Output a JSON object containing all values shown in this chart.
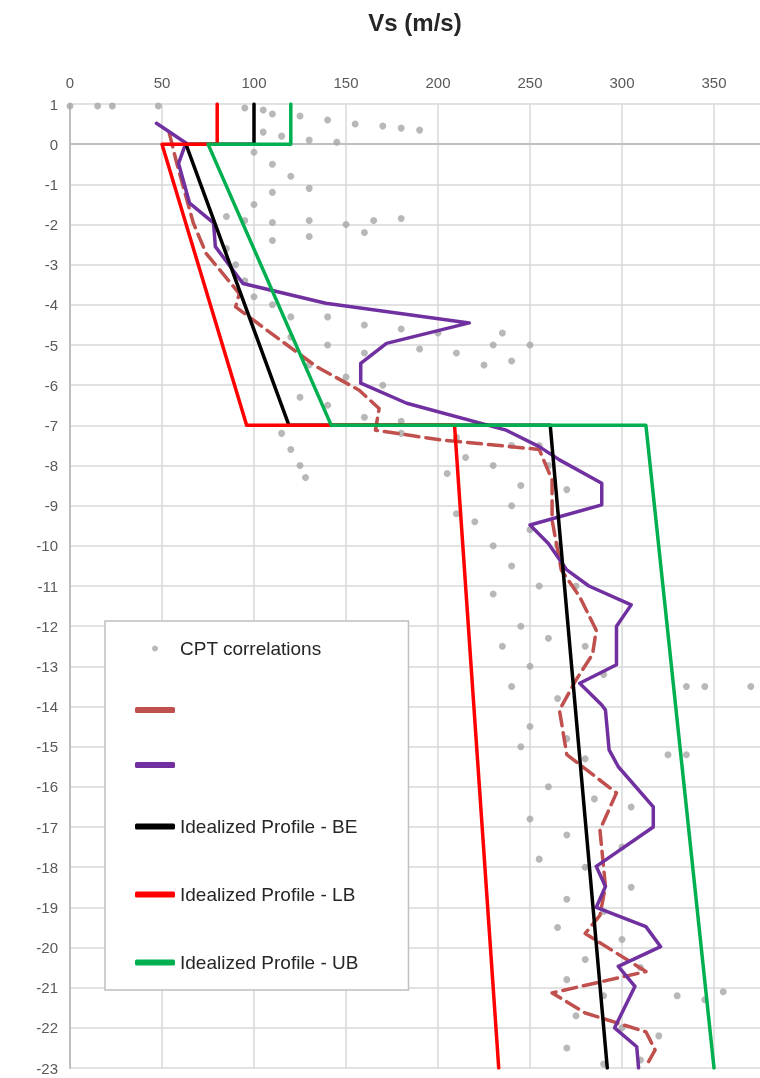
{
  "chart_data": {
    "type": "line",
    "xlabel": "Vs (m/s)",
    "xlim": [
      0,
      375
    ],
    "xticks": [
      0,
      50,
      100,
      150,
      200,
      250,
      300,
      350
    ],
    "ylim": [
      -23,
      1
    ],
    "yticks": [
      -23,
      -22,
      -21,
      -20,
      -19,
      -18,
      -17,
      -16,
      -15,
      -14,
      -13,
      -12,
      -11,
      -10,
      -9,
      -8,
      -7,
      -6,
      -5,
      -4,
      -3,
      -2,
      -1,
      0,
      1
    ],
    "grid": true,
    "legend": "bottom left",
    "marker": "none",
    "series": [
      {
        "name": "CPT correlations",
        "type": "scatter",
        "marker": "circle",
        "color": "#a6a6a6",
        "x": [
          0,
          15,
          23,
          48,
          95,
          105,
          110,
          125,
          140,
          155,
          170,
          180,
          190,
          105,
          115,
          130,
          145,
          100,
          110,
          120,
          130,
          110,
          100,
          85,
          95,
          110,
          130,
          150,
          165,
          180,
          160,
          130,
          110,
          85,
          90,
          95,
          100,
          110,
          120,
          140,
          160,
          180,
          200,
          120,
          140,
          160,
          190,
          210,
          230,
          250,
          235,
          240,
          225,
          130,
          150,
          170,
          125,
          140,
          160,
          180,
          115,
          120,
          125,
          128,
          180,
          210,
          240,
          255,
          215,
          230,
          205,
          260,
          245,
          270,
          210,
          220,
          240,
          250,
          230,
          265,
          240,
          255,
          230,
          275,
          245,
          260,
          235,
          280,
          250,
          240,
          265,
          290,
          335,
          345,
          370,
          250,
          270,
          245,
          280,
          325,
          335,
          260,
          285,
          305,
          250,
          270,
          300,
          255,
          280,
          305,
          270,
          290,
          265,
          300,
          280,
          310,
          270,
          290,
          330,
          345,
          355,
          275,
          300,
          320,
          270,
          290,
          310
        ],
        "values": [
          0.95,
          0.95,
          0.95,
          0.95,
          0.9,
          0.85,
          0.75,
          0.7,
          0.6,
          0.5,
          0.45,
          0.4,
          0.35,
          0.3,
          0.2,
          0.1,
          0.05,
          -0.2,
          -0.5,
          -0.8,
          -1.1,
          -1.2,
          -1.5,
          -1.8,
          -1.9,
          -1.95,
          -1.9,
          -2,
          -1.9,
          -1.85,
          -2.2,
          -2.3,
          -2.4,
          -2.6,
          -3,
          -3.4,
          -3.8,
          -4,
          -4.3,
          -4.3,
          -4.5,
          -4.6,
          -4.7,
          -4.8,
          -5,
          -5.2,
          -5.1,
          -5.2,
          -5,
          -5,
          -4.7,
          -5.4,
          -5.5,
          -5.5,
          -5.8,
          -6,
          -6.3,
          -6.5,
          -6.8,
          -6.9,
          -7.2,
          -7.6,
          -8,
          -8.3,
          -7.2,
          -7.3,
          -7.5,
          -7.5,
          -7.8,
          -8,
          -8.2,
          -8,
          -8.5,
          -8.6,
          -9.2,
          -9.4,
          -9,
          -9.6,
          -10,
          -10,
          -10.5,
          -11,
          -11.2,
          -11,
          -12,
          -12.3,
          -12.5,
          -12.5,
          -13,
          -13.5,
          -13.8,
          -13.2,
          -13.5,
          -13.5,
          -13.5,
          -14.5,
          -14.8,
          -15,
          -15.3,
          -15.2,
          -15.2,
          -16,
          -16.3,
          -16.5,
          -16.8,
          -17.2,
          -17.5,
          -17.8,
          -18,
          -18.5,
          -18.8,
          -19.1,
          -19.5,
          -19.8,
          -20.3,
          -20.5,
          -20.8,
          -21.2,
          -21.2,
          -21.3,
          -21.1,
          -21.7,
          -22,
          -22.2,
          -22.5,
          -22.9,
          -22.8
        ]
      },
      {
        "color": "#c0504d",
        "line_style": "dashed",
        "x": [
          54,
          58,
          67,
          74,
          92,
          90,
          107,
          134,
          157,
          168,
          166,
          201,
          255,
          262,
          262,
          267,
          277,
          286,
          284,
          275,
          266,
          270,
          297,
          288,
          291,
          288,
          280,
          313,
          262,
          280,
          313,
          318,
          313
        ],
        "values": [
          0.27,
          -0.47,
          -1.96,
          -2.72,
          -3.72,
          -4.05,
          -4.63,
          -5.54,
          -6.12,
          -6.58,
          -7.12,
          -7.36,
          -7.6,
          -8.36,
          -9.36,
          -10.6,
          -11.27,
          -12.1,
          -12.7,
          -13.34,
          -14.09,
          -15.2,
          -16.15,
          -17.07,
          -18.48,
          -19.2,
          -19.65,
          -20.6,
          -21.13,
          -21.63,
          -22.1,
          -22.55,
          -22.96
        ]
      },
      {
        "color": "#7030a0",
        "line_style": "solid",
        "x": [
          47,
          63,
          59,
          65,
          78,
          79,
          94,
          139,
          217,
          172,
          158,
          158,
          183,
          237,
          255,
          266,
          289,
          289,
          250,
          260,
          270,
          282,
          305,
          297,
          297,
          277,
          289,
          291,
          293,
          298,
          317,
          317,
          286,
          291,
          286,
          313,
          321,
          298,
          307,
          296,
          308,
          309
        ],
        "values": [
          0.52,
          0.03,
          -0.48,
          -1.47,
          -1.96,
          -2.55,
          -3.47,
          -3.96,
          -4.45,
          -4.96,
          -5.46,
          -5.95,
          -6.45,
          -7.12,
          -7.53,
          -7.86,
          -8.44,
          -8.98,
          -9.48,
          -9.94,
          -10.6,
          -11,
          -11.47,
          -12,
          -12.96,
          -13.42,
          -13.96,
          -14.09,
          -15.08,
          -15.5,
          -16.5,
          -17,
          -17.98,
          -18.48,
          -19,
          -19.48,
          -19.98,
          -20.47,
          -20.97,
          -22,
          -22.47,
          -23
        ]
      },
      {
        "name": "Idealized Profile - BE",
        "color": "#000000",
        "line_style": "solid",
        "x": [
          100,
          100,
          63,
          119,
          261,
          292
        ],
        "values": [
          1,
          0,
          0,
          -7,
          -7,
          -23
        ]
      },
      {
        "name": "Idealized Profile - LB",
        "color": "#ff0000",
        "line_style": "solid",
        "x": [
          80,
          80,
          50,
          96,
          209,
          233
        ],
        "values": [
          1,
          0,
          0,
          -7,
          -7,
          -23
        ]
      },
      {
        "name": "Idealized Profile - UB",
        "color": "#00b050",
        "line_style": "solid",
        "x": [
          120,
          120,
          75,
          142,
          313,
          350
        ],
        "values": [
          1,
          0,
          0,
          -7,
          -7,
          -23
        ]
      }
    ]
  }
}
